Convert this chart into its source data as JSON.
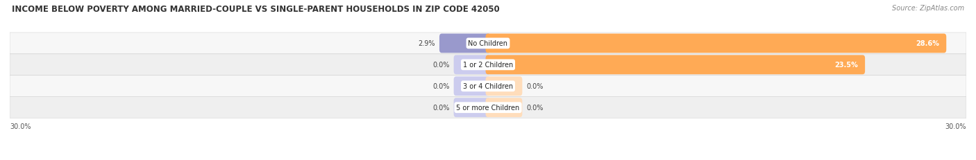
{
  "title": "INCOME BELOW POVERTY AMONG MARRIED-COUPLE VS SINGLE-PARENT HOUSEHOLDS IN ZIP CODE 42050",
  "source": "Source: ZipAtlas.com",
  "categories": [
    "No Children",
    "1 or 2 Children",
    "3 or 4 Children",
    "5 or more Children"
  ],
  "married_couples": [
    2.9,
    0.0,
    0.0,
    0.0
  ],
  "single_parents": [
    28.6,
    23.5,
    0.0,
    0.0
  ],
  "max_val": 30.0,
  "married_color": "#9999cc",
  "single_color": "#ffaa55",
  "married_color_light": "#ccccee",
  "single_color_light": "#ffddbb",
  "row_bg_colors": [
    "#f5f5f5",
    "#ebebeb"
  ],
  "title_fontsize": 8.5,
  "label_fontsize": 7,
  "value_fontsize": 7,
  "legend_fontsize": 7,
  "source_fontsize": 7,
  "x_axis_label": "30.0%",
  "background_color": "#ffffff",
  "min_bar_width": 2.0
}
